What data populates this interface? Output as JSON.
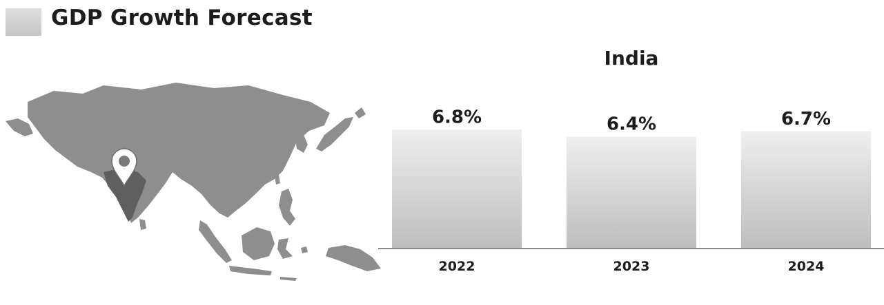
{
  "page": {
    "title": "GDP Growth Forecast"
  },
  "chart_data": {
    "type": "bar",
    "title": "India",
    "categories": [
      "2022",
      "2023",
      "2024"
    ],
    "values": [
      6.8,
      6.4,
      6.7
    ],
    "value_labels": [
      "6.8%",
      "6.4%",
      "6.7%"
    ],
    "xlabel": "",
    "ylabel": "",
    "grid": false,
    "legend": "none",
    "colors": {
      "bar_top": "#efefef",
      "bar_bottom": "#bdbdbd",
      "baseline": "#8a8a8a",
      "text": "#1c1c1c"
    }
  },
  "map": {
    "marker_icon": "location-pin-icon",
    "region_color": "#8a8a8a",
    "highlight_color": "#5a5a5a"
  }
}
